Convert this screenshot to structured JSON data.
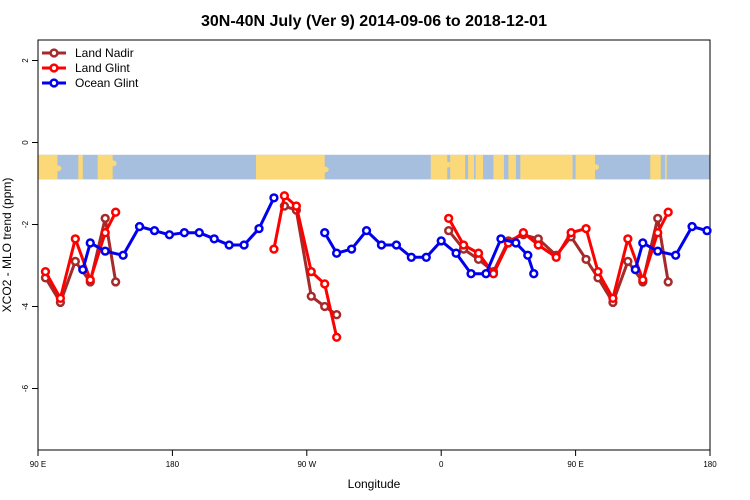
{
  "chart_data": {
    "type": "line",
    "title": "30N-40N July (Ver 9)   2014-09-06 to 2018-12-01",
    "xlabel": "Longitude",
    "ylabel": "XCO2 - MLO trend (ppm)",
    "x_axis": {
      "range": [
        90,
        450
      ],
      "ticks": [
        {
          "value": 90,
          "label": "90 E"
        },
        {
          "value": 180,
          "label": "180"
        },
        {
          "value": 270,
          "label": "90 W"
        },
        {
          "value": 360,
          "label": "0"
        },
        {
          "value": 450,
          "label": "90 E"
        },
        {
          "value": 540,
          "label": "180"
        }
      ]
    },
    "y_axis": {
      "range": [
        -7.5,
        2.5
      ],
      "ticks": [
        {
          "value": 2,
          "label": "2"
        },
        {
          "value": 0,
          "label": "0"
        },
        {
          "value": -2,
          "label": "-2"
        },
        {
          "value": -4,
          "label": "-4"
        },
        {
          "value": -6,
          "label": "-6"
        }
      ]
    },
    "xlim": [
      90,
      540
    ],
    "ylim": [
      -7.5,
      2.5
    ],
    "grid": false,
    "legend_position": "top-left",
    "map_band": {
      "ymin": -0.9,
      "ymax": -0.3,
      "ocean_color": "#a7bfdf",
      "land_color": "#fbd978"
    },
    "series": [
      {
        "name": "Land Nadir",
        "color": "#a52a2a",
        "points": [
          {
            "x": 95,
            "y": -3.3
          },
          {
            "x": 105,
            "y": -3.9
          },
          {
            "x": 115,
            "y": -2.9
          },
          {
            "x": 125,
            "y": -3.4
          },
          {
            "x": 135,
            "y": -1.85
          },
          {
            "x": 142,
            "y": -3.4
          },
          null,
          {
            "x": 255,
            "y": -1.55
          },
          {
            "x": 263,
            "y": -1.65
          },
          {
            "x": 273,
            "y": -3.75
          },
          {
            "x": 282,
            "y": -4.0
          },
          {
            "x": 290,
            "y": -4.2
          },
          null,
          {
            "x": 365,
            "y": -2.15
          },
          {
            "x": 375,
            "y": -2.6
          },
          {
            "x": 385,
            "y": -2.85
          },
          {
            "x": 395,
            "y": -3.15
          },
          {
            "x": 405,
            "y": -2.4
          },
          {
            "x": 415,
            "y": -2.25
          },
          {
            "x": 425,
            "y": -2.35
          },
          {
            "x": 437,
            "y": -2.75
          },
          {
            "x": 447,
            "y": -2.3
          },
          {
            "x": 457,
            "y": -2.85
          },
          {
            "x": 465,
            "y": -3.3
          },
          {
            "x": 475,
            "y": -3.9
          },
          {
            "x": 485,
            "y": -2.9
          },
          {
            "x": 495,
            "y": -3.4
          },
          {
            "x": 505,
            "y": -1.85
          },
          {
            "x": 512,
            "y": -3.4
          }
        ]
      },
      {
        "name": "Land Glint",
        "color": "#ff0000",
        "points": [
          {
            "x": 95,
            "y": -3.15
          },
          {
            "x": 105,
            "y": -3.8
          },
          {
            "x": 115,
            "y": -2.35
          },
          {
            "x": 125,
            "y": -3.35
          },
          {
            "x": 135,
            "y": -2.2
          },
          {
            "x": 142,
            "y": -1.7
          },
          null,
          {
            "x": 248,
            "y": -2.6
          },
          {
            "x": 255,
            "y": -1.3
          },
          {
            "x": 263,
            "y": -1.55
          },
          {
            "x": 273,
            "y": -3.15
          },
          {
            "x": 282,
            "y": -3.45
          },
          {
            "x": 290,
            "y": -4.75
          },
          null,
          {
            "x": 365,
            "y": -1.85
          },
          {
            "x": 375,
            "y": -2.5
          },
          {
            "x": 385,
            "y": -2.7
          },
          {
            "x": 395,
            "y": -3.2
          },
          {
            "x": 405,
            "y": -2.45
          },
          {
            "x": 415,
            "y": -2.2
          },
          {
            "x": 425,
            "y": -2.5
          },
          {
            "x": 437,
            "y": -2.8
          },
          {
            "x": 447,
            "y": -2.2
          },
          {
            "x": 457,
            "y": -2.1
          },
          {
            "x": 465,
            "y": -3.15
          },
          {
            "x": 475,
            "y": -3.8
          },
          {
            "x": 485,
            "y": -2.35
          },
          {
            "x": 495,
            "y": -3.35
          },
          {
            "x": 505,
            "y": -2.2
          },
          {
            "x": 512,
            "y": -1.7
          }
        ]
      },
      {
        "name": "Ocean Glint",
        "color": "#0000ee",
        "points": [
          {
            "x": 120,
            "y": -3.1
          },
          {
            "x": 125,
            "y": -2.45
          },
          {
            "x": 135,
            "y": -2.65
          },
          {
            "x": 147,
            "y": -2.75
          },
          {
            "x": 158,
            "y": -2.05
          },
          {
            "x": 168,
            "y": -2.15
          },
          {
            "x": 178,
            "y": -2.25
          },
          {
            "x": 188,
            "y": -2.2
          },
          {
            "x": 198,
            "y": -2.2
          },
          {
            "x": 208,
            "y": -2.35
          },
          {
            "x": 218,
            "y": -2.5
          },
          {
            "x": 228,
            "y": -2.5
          },
          {
            "x": 238,
            "y": -2.1
          },
          {
            "x": 248,
            "y": -1.35
          },
          null,
          {
            "x": 282,
            "y": -2.2
          },
          {
            "x": 290,
            "y": -2.7
          },
          {
            "x": 300,
            "y": -2.6
          },
          {
            "x": 310,
            "y": -2.15
          },
          {
            "x": 320,
            "y": -2.5
          },
          {
            "x": 330,
            "y": -2.5
          },
          {
            "x": 340,
            "y": -2.8
          },
          {
            "x": 350,
            "y": -2.8
          },
          {
            "x": 360,
            "y": -2.4
          },
          {
            "x": 370,
            "y": -2.7
          },
          {
            "x": 380,
            "y": -3.2
          },
          {
            "x": 390,
            "y": -3.2
          },
          {
            "x": 400,
            "y": -2.35
          },
          {
            "x": 410,
            "y": -2.45
          },
          {
            "x": 418,
            "y": -2.75
          },
          {
            "x": 422,
            "y": -3.2
          },
          null,
          {
            "x": 490,
            "y": -3.1
          },
          {
            "x": 495,
            "y": -2.45
          },
          {
            "x": 505,
            "y": -2.65
          },
          {
            "x": 517,
            "y": -2.75
          },
          {
            "x": 528,
            "y": -2.05
          },
          {
            "x": 538,
            "y": -2.15
          },
          {
            "x": 548,
            "y": -2.25
          }
        ]
      }
    ]
  }
}
